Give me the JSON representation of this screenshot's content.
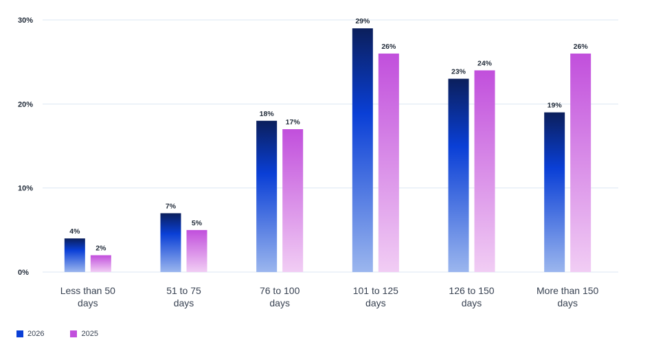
{
  "chart_data": {
    "type": "bar",
    "categories": [
      [
        "Less than 50",
        "days"
      ],
      [
        "51 to 75",
        "days"
      ],
      [
        "76 to 100",
        "days"
      ],
      [
        "101 to 125",
        "days"
      ],
      [
        "126 to 150",
        "days"
      ],
      [
        "More than 150",
        "days"
      ]
    ],
    "series": [
      {
        "name": "2026",
        "values": [
          4,
          7,
          18,
          29,
          23,
          19
        ],
        "labels": [
          "4%",
          "7%",
          "18%",
          "29%",
          "23%",
          "19%"
        ],
        "color": "#0a3fd6"
      },
      {
        "name": "2025",
        "values": [
          2,
          5,
          17,
          26,
          24,
          26
        ],
        "labels": [
          "2%",
          "5%",
          "17%",
          "26%",
          "24%",
          "26%"
        ],
        "color": "#c14fdc"
      }
    ],
    "y_ticks": [
      {
        "value": 0,
        "label": "0%"
      },
      {
        "value": 10,
        "label": "10%"
      },
      {
        "value": 20,
        "label": "20%"
      },
      {
        "value": 30,
        "label": "30%"
      }
    ],
    "ylim": [
      0,
      30
    ],
    "grid": true,
    "legend_position": "bottom-left"
  }
}
